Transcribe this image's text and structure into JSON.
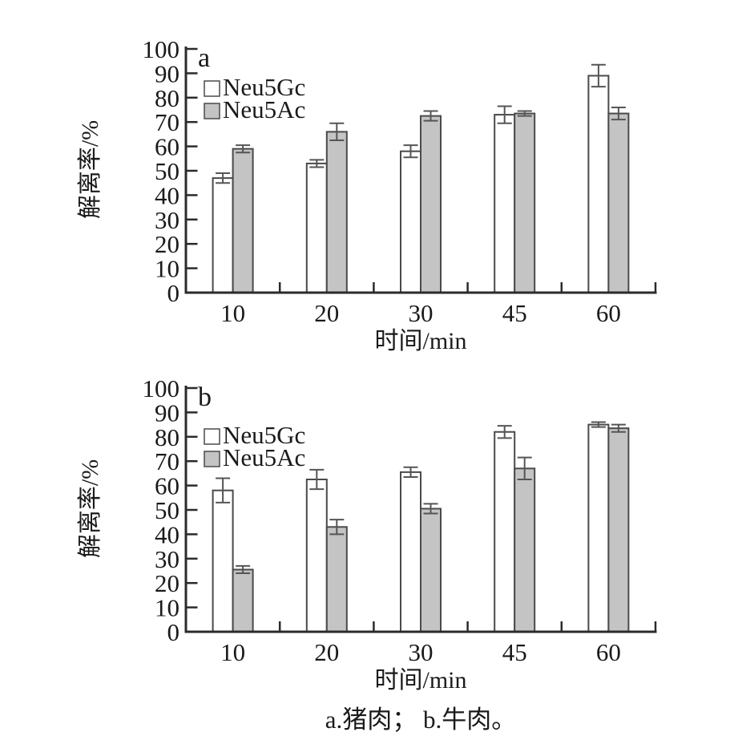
{
  "figure": {
    "caption": "a.猪肉； b.牛肉。"
  },
  "colors": {
    "axis": "#2b2b2b",
    "text": "#1a1a1a",
    "bar_stroke": "#4a4a4a",
    "error_stroke": "#555555",
    "neu5gc_fill": "#ffffff",
    "neu5ac_fill": "#c4c4c4"
  },
  "chart_data": [
    {
      "type": "bar",
      "panel": "a",
      "xlabel": "时间/min",
      "ylabel": "解离率/%",
      "ylim": [
        0,
        100
      ],
      "ytick_step": 10,
      "grid": false,
      "legend_position": "top-left-inside",
      "categories": [
        "10",
        "20",
        "30",
        "45",
        "60"
      ],
      "series": [
        {
          "name": "Neu5Gc",
          "fill_key": "neu5gc_fill",
          "values": [
            47,
            53,
            58,
            73,
            89
          ],
          "errors": [
            2,
            1.5,
            2.5,
            3.5,
            4.5
          ]
        },
        {
          "name": "Neu5Ac",
          "fill_key": "neu5ac_fill",
          "values": [
            59,
            66,
            72.5,
            73.5,
            73.5
          ],
          "errors": [
            1.5,
            3.5,
            2,
            1,
            2.5
          ]
        }
      ]
    },
    {
      "type": "bar",
      "panel": "b",
      "xlabel": "时间/min",
      "ylabel": "解离率/%",
      "ylim": [
        0,
        100
      ],
      "ytick_step": 10,
      "grid": false,
      "legend_position": "top-left-inside",
      "categories": [
        "10",
        "20",
        "30",
        "45",
        "60"
      ],
      "series": [
        {
          "name": "Neu5Gc",
          "fill_key": "neu5gc_fill",
          "values": [
            58,
            62.5,
            65.5,
            82,
            85
          ],
          "errors": [
            5,
            4,
            2,
            2.5,
            1
          ]
        },
        {
          "name": "Neu5Ac",
          "fill_key": "neu5ac_fill",
          "values": [
            25.5,
            43,
            50.5,
            67,
            83.5
          ],
          "errors": [
            1.5,
            3,
            2,
            4.5,
            1.5
          ]
        }
      ]
    }
  ]
}
